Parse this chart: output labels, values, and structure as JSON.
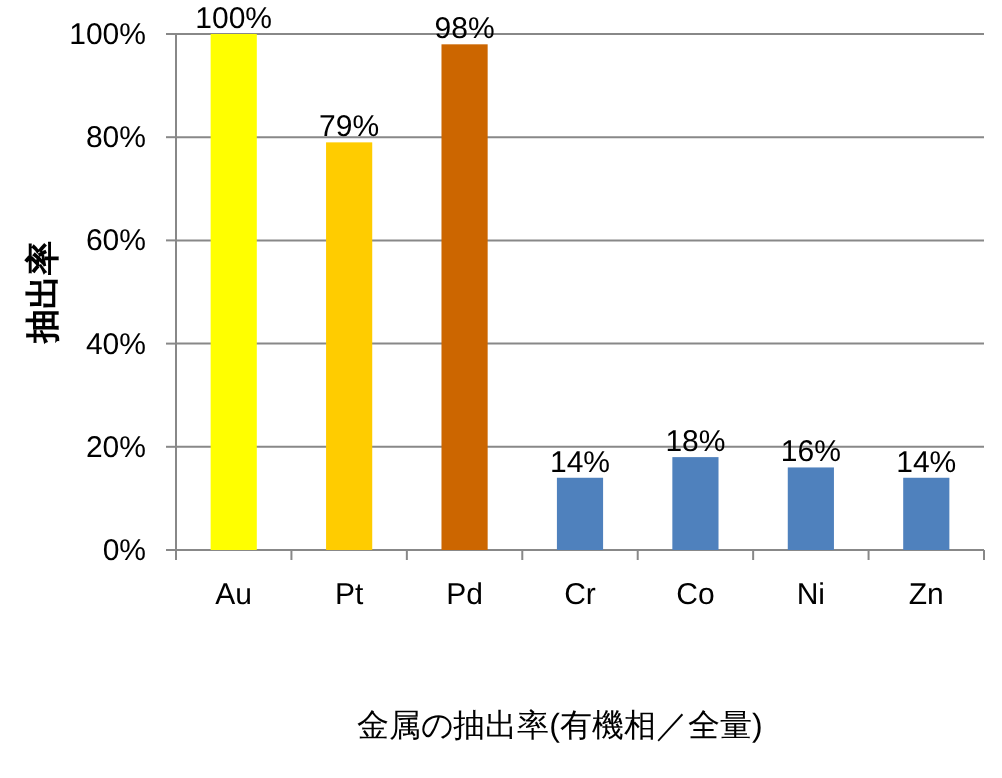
{
  "chart_data": {
    "type": "bar",
    "categories": [
      "Au",
      "Pt",
      "Pd",
      "Cr",
      "Co",
      "Ni",
      "Zn"
    ],
    "values": [
      100,
      79,
      98,
      14,
      18,
      16,
      14
    ],
    "colors": [
      "#ffff00",
      "#ffcc00",
      "#cc6600",
      "#4f81bd",
      "#4f81bd",
      "#4f81bd",
      "#4f81bd"
    ],
    "value_labels": [
      "100%",
      "79%",
      "98%",
      "14%",
      "18%",
      "16%",
      "14%"
    ],
    "xlabel": "金属の抽出率(有機相／全量)",
    "ylabel": "抽出率",
    "ylim": [
      0,
      100
    ],
    "yticks": [
      {
        "value": 0,
        "label": "0%"
      },
      {
        "value": 20,
        "label": "20%"
      },
      {
        "value": 40,
        "label": "40%"
      },
      {
        "value": 60,
        "label": "60%"
      },
      {
        "value": 80,
        "label": "80%"
      },
      {
        "value": 100,
        "label": "100%"
      }
    ],
    "grid": "y"
  }
}
